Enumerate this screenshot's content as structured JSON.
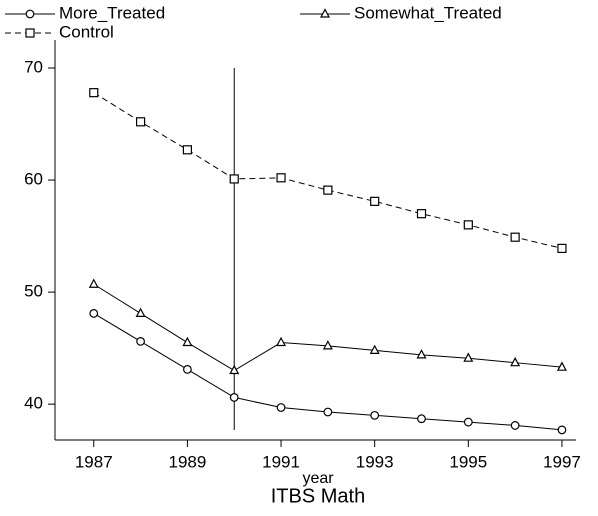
{
  "chart_data": {
    "type": "line",
    "title": "ITBS Math",
    "x_label": "year",
    "x": [
      1987,
      1988,
      1989,
      1990,
      1991,
      1992,
      1993,
      1994,
      1995,
      1996,
      1997
    ],
    "series": [
      {
        "name": "More_Treated",
        "color": "#000000",
        "marker": "circle",
        "dash": false,
        "values": [
          48.1,
          45.6,
          43.1,
          40.6,
          39.7,
          39.3,
          39.0,
          38.7,
          38.4,
          38.1,
          37.7
        ]
      },
      {
        "name": "Somewhat_Treated",
        "color": "#000000",
        "marker": "triangle",
        "dash": false,
        "values": [
          50.7,
          48.1,
          45.5,
          43.0,
          45.5,
          45.2,
          44.8,
          44.4,
          44.1,
          43.7,
          43.3
        ]
      },
      {
        "name": "Control",
        "color": "#000000",
        "marker": "square",
        "dash": true,
        "values": [
          67.8,
          65.2,
          62.7,
          60.1,
          60.2,
          59.1,
          58.1,
          57.0,
          56.0,
          54.9,
          53.9
        ]
      }
    ],
    "xlim": [
      1986.3,
      1997.3
    ],
    "xticks": [
      1987,
      1989,
      1991,
      1993,
      1995,
      1997
    ],
    "ylim": [
      36.8,
      72.5
    ],
    "yticks": [
      40,
      50,
      60,
      70
    ],
    "vline": 1990,
    "grid": false
  }
}
